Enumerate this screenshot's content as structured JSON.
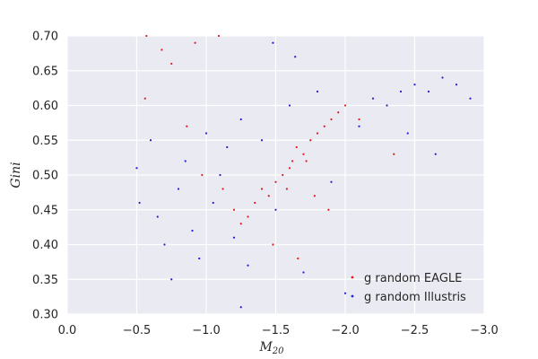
{
  "chart_data": {
    "type": "scatter",
    "title": "",
    "xlabel_main": "M",
    "xlabel_sub": "20",
    "ylabel": "Gini",
    "xlim": [
      0.0,
      -3.0
    ],
    "ylim": [
      0.3,
      0.7
    ],
    "x_ticks": [
      0.0,
      -0.5,
      -1.0,
      -1.5,
      -2.0,
      -2.5,
      -3.0
    ],
    "x_tick_labels": [
      "0.0",
      "−0.5",
      "−1.0",
      "−1.5",
      "−2.0",
      "−2.5",
      "−3.0"
    ],
    "y_ticks": [
      0.3,
      0.35,
      0.4,
      0.45,
      0.5,
      0.55,
      0.6,
      0.65,
      0.7
    ],
    "y_tick_labels": [
      "0.30",
      "0.35",
      "0.40",
      "0.45",
      "0.50",
      "0.55",
      "0.60",
      "0.65",
      "0.70"
    ],
    "grid": true,
    "legend_position": "lower-right",
    "series": [
      {
        "name": "g random EAGLE",
        "color": "#e31a1c",
        "marker": "dot",
        "points": [
          [
            -1.62,
            0.52
          ],
          [
            -1.75,
            0.55
          ],
          [
            -1.85,
            0.57
          ],
          [
            -1.55,
            0.5
          ],
          [
            -1.45,
            0.47
          ],
          [
            -1.7,
            0.53
          ],
          [
            -1.9,
            0.58
          ],
          [
            -1.8,
            0.56
          ],
          [
            -1.6,
            0.51
          ],
          [
            -1.5,
            0.49
          ],
          [
            -1.35,
            0.46
          ],
          [
            -1.95,
            0.59
          ],
          [
            -2.0,
            0.6
          ],
          [
            -1.65,
            0.54
          ],
          [
            -1.4,
            0.48
          ],
          [
            -1.3,
            0.44
          ],
          [
            -1.25,
            0.43
          ],
          [
            -2.1,
            0.58
          ],
          [
            -1.72,
            0.52
          ],
          [
            -1.58,
            0.48
          ],
          [
            -0.57,
            0.7
          ],
          [
            -0.92,
            0.69
          ],
          [
            -1.09,
            0.7
          ],
          [
            -0.68,
            0.68
          ],
          [
            -0.75,
            0.66
          ],
          [
            -0.56,
            0.61
          ],
          [
            -0.86,
            0.57
          ],
          [
            -1.78,
            0.47
          ],
          [
            -1.88,
            0.45
          ],
          [
            -2.35,
            0.53
          ],
          [
            -1.12,
            0.48
          ],
          [
            -1.2,
            0.45
          ],
          [
            -0.97,
            0.5
          ],
          [
            -1.48,
            0.4
          ],
          [
            -1.66,
            0.38
          ]
        ]
      },
      {
        "name": "g random Illustris",
        "color": "#1f1fd4",
        "marker": "dot",
        "points": [
          [
            -0.5,
            0.51
          ],
          [
            -0.52,
            0.46
          ],
          [
            -0.6,
            0.55
          ],
          [
            -0.65,
            0.44
          ],
          [
            -0.7,
            0.4
          ],
          [
            -0.75,
            0.35
          ],
          [
            -0.8,
            0.48
          ],
          [
            -0.85,
            0.52
          ],
          [
            -0.9,
            0.42
          ],
          [
            -0.95,
            0.38
          ],
          [
            -1.0,
            0.56
          ],
          [
            -1.05,
            0.46
          ],
          [
            -1.1,
            0.5
          ],
          [
            -1.15,
            0.54
          ],
          [
            -1.2,
            0.41
          ],
          [
            -1.25,
            0.58
          ],
          [
            -1.3,
            0.37
          ],
          [
            -1.4,
            0.55
          ],
          [
            -1.5,
            0.45
          ],
          [
            -1.6,
            0.6
          ],
          [
            -1.7,
            0.36
          ],
          [
            -1.8,
            0.62
          ],
          [
            -1.9,
            0.49
          ],
          [
            -2.0,
            0.33
          ],
          [
            -2.1,
            0.57
          ],
          [
            -2.2,
            0.61
          ],
          [
            -2.3,
            0.6
          ],
          [
            -2.4,
            0.62
          ],
          [
            -2.5,
            0.63
          ],
          [
            -2.6,
            0.62
          ],
          [
            -2.7,
            0.64
          ],
          [
            -2.8,
            0.63
          ],
          [
            -2.9,
            0.61
          ],
          [
            -2.65,
            0.53
          ],
          [
            -2.45,
            0.56
          ],
          [
            -1.48,
            0.69
          ],
          [
            -1.64,
            0.67
          ],
          [
            -1.25,
            0.31
          ]
        ]
      }
    ]
  }
}
